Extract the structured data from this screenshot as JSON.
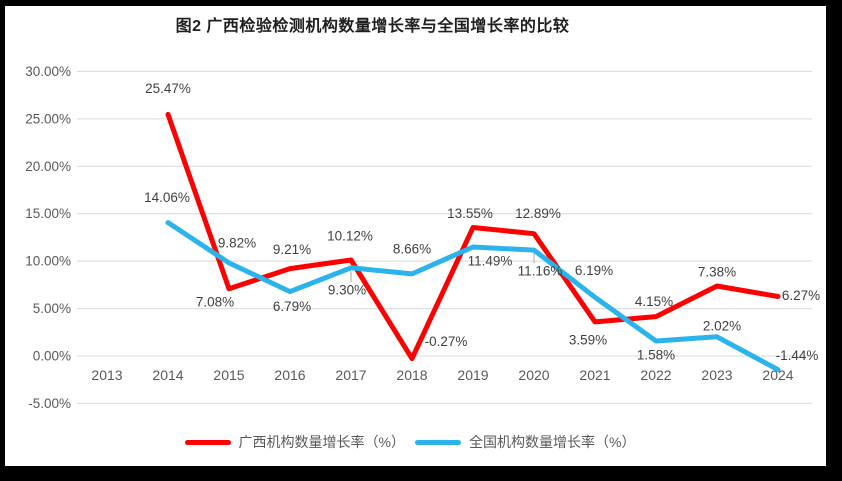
{
  "frame": {
    "border_color": "#000000",
    "background_color": "#ffffff"
  },
  "chart_data": {
    "type": "line",
    "title": "图2 广西检验检测机构数量增长率与全国增长率的比较",
    "categories": [
      "2013",
      "2014",
      "2015",
      "2016",
      "2017",
      "2018",
      "2019",
      "2020",
      "2021",
      "2022",
      "2023",
      "2024"
    ],
    "series": [
      {
        "id": "guangxi",
        "name": "广西机构数量增长率（%）",
        "color": "#FE0000",
        "values": [
          null,
          25.47,
          7.08,
          9.21,
          10.12,
          -0.27,
          13.55,
          12.89,
          3.59,
          4.15,
          7.38,
          6.27
        ],
        "labels": [
          null,
          "25.47%",
          "7.08%",
          "9.21%",
          "10.12%",
          "-0.27%",
          "13.55%",
          "12.89%",
          "3.59%",
          "4.15%",
          "7.38%",
          "6.27%"
        ]
      },
      {
        "id": "national",
        "name": "全国机构数量增长率（%）",
        "color": "#2BB4EC",
        "values": [
          null,
          14.06,
          9.82,
          6.79,
          9.3,
          8.66,
          11.49,
          11.16,
          6.19,
          1.58,
          2.02,
          -1.44
        ],
        "labels": [
          null,
          "14.06%",
          "9.82%",
          "6.79%",
          "9.30%",
          "8.66%",
          "11.49%",
          "11.16%",
          "6.19%",
          "1.58%",
          "2.02%",
          "-1.44%"
        ]
      }
    ],
    "y_ticks": [
      "30.00%",
      "25.00%",
      "20.00%",
      "15.00%",
      "10.00%",
      "5.00%",
      "0.00%",
      "-5.00%"
    ],
    "y_tick_values": [
      30,
      25,
      20,
      15,
      10,
      5,
      0,
      -5
    ],
    "ylim": [
      -5,
      30
    ],
    "xlabel": "",
    "ylabel": "",
    "grid": "horizontal",
    "grid_color": "#D9D9D9",
    "axis_label_color": "#595959",
    "data_label_color": "#3F3F3F",
    "leader_line_color": "#A6A6A6",
    "legend_position": "bottom"
  }
}
